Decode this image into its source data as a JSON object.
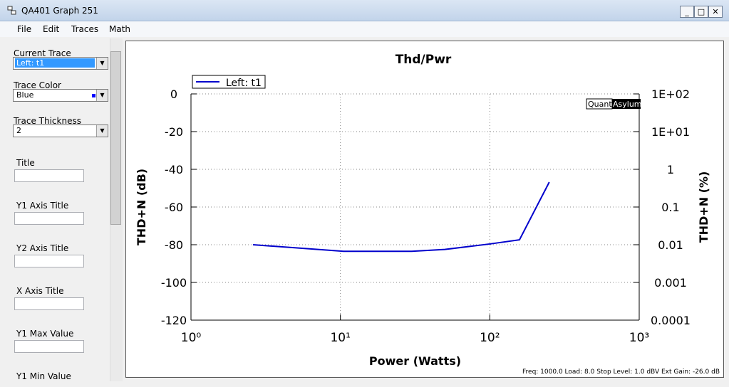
{
  "window": {
    "title": "QA401 Graph 251",
    "menu": [
      "File",
      "Edit",
      "Traces",
      "Math"
    ]
  },
  "sidebar": {
    "fields": [
      {
        "label": "Current Trace",
        "value": "Left: t1"
      },
      {
        "label": "Trace Color",
        "value": "Blue"
      },
      {
        "label": "Trace Thickness",
        "value": "2"
      }
    ],
    "text_fields": [
      "Title",
      "Y1 Axis Title",
      "Y2 Axis Title",
      "X Axis Title",
      "Y1 Max Value",
      "Y1 Min Value"
    ]
  },
  "chart_data": {
    "type": "line",
    "title": "Thd/Pwr",
    "x_label": "Power (Watts)",
    "y_label": "THD+N (dB)",
    "y2_label": "THD+N (%)",
    "x_scale": "log",
    "y2_scale": "log",
    "xlim": [
      1,
      1000
    ],
    "xticks": [
      {
        "value": 1,
        "label": "10⁰"
      },
      {
        "value": 10,
        "label": "10¹"
      },
      {
        "value": 100,
        "label": "10²"
      },
      {
        "value": 1000,
        "label": "10³"
      }
    ],
    "ylim": [
      -120,
      0
    ],
    "yticks": [
      0,
      -20,
      -40,
      -60,
      -80,
      -100,
      -120
    ],
    "y2lim": [
      0.0001,
      100
    ],
    "y2ticks": [
      {
        "value": 100,
        "label": "1E+02"
      },
      {
        "value": 10,
        "label": "1E+01"
      },
      1,
      0.1,
      0.01,
      0.001,
      0.0001
    ],
    "grid": true,
    "legend": "top-left",
    "x": [
      2.6,
      10.5,
      30,
      50,
      100,
      158,
      250
    ],
    "series": [
      {
        "name": "Left: t1",
        "color": "#0000cc",
        "values": [
          -80,
          -83.5,
          -83.5,
          -82.5,
          -79.6,
          -77.4,
          -46.8
        ]
      }
    ],
    "watermark": [
      "Quant",
      "Asylum"
    ],
    "footer": "Freq: 1000.0 Load: 8.0 Stop Level: 1.0 dBV  Ext Gain: -26.0 dB"
  }
}
